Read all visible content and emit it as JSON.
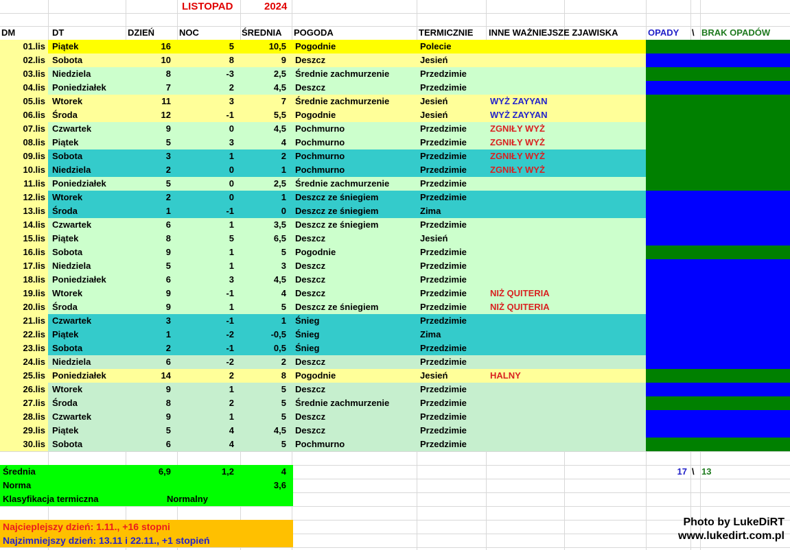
{
  "title": {
    "month": "LISTOPAD",
    "year": "2024"
  },
  "columns": {
    "dm": "DM",
    "dt": "DT",
    "day": "DZIEŃ",
    "night": "NOC",
    "avg": "ŚREDNIA",
    "weather": "POGODA",
    "thermal": "TERMICZNIE",
    "phenomena": "INNE WAŻNIEJSZE ZJAWISKA",
    "precip": "OPADY",
    "separator": "\\",
    "no_precip": "BRAK OPADÓW"
  },
  "fills": {
    "bright-yellow": "#ffff00",
    "pale-yellow": "#ffff99",
    "light-green": "#ccffcc",
    "green2": "#c6efce",
    "teal": "#34cbcb"
  },
  "bars": {
    "rain": "#0000ff",
    "dry": "#008000"
  },
  "colors": {
    "title_red": "#e00000",
    "phenomena_red": "#d92121",
    "phenomena_blue": "#2323cb",
    "precip_header_blue": "#2020c8",
    "no_precip_header_green": "#1e7a1e",
    "summary_green": "#00ff00",
    "extremes_orange": "#ffc000"
  },
  "rows": [
    {
      "dm": "01.lis",
      "dt": "Piątek",
      "day": "16",
      "night": "5",
      "avg": "10,5",
      "weather": "Pogodnie",
      "thermal": "Polecie",
      "phenomena": "",
      "phenomena_color": "",
      "fill": "bright-yellow",
      "bar": "dry"
    },
    {
      "dm": "02.lis",
      "dt": "Sobota",
      "day": "10",
      "night": "8",
      "avg": "9",
      "weather": "Deszcz",
      "thermal": "Jesień",
      "phenomena": "",
      "phenomena_color": "",
      "fill": "pale-yellow",
      "bar": "rain"
    },
    {
      "dm": "03.lis",
      "dt": "Niedziela",
      "day": "8",
      "night": "-3",
      "avg": "2,5",
      "weather": "Średnie zachmurzenie",
      "thermal": "Przedzimie",
      "phenomena": "",
      "phenomena_color": "",
      "fill": "light-green",
      "bar": "dry"
    },
    {
      "dm": "04.lis",
      "dt": "Poniedziałek",
      "day": "7",
      "night": "2",
      "avg": "4,5",
      "weather": "Deszcz",
      "thermal": "Przedzimie",
      "phenomena": "",
      "phenomena_color": "",
      "fill": "light-green",
      "bar": "rain"
    },
    {
      "dm": "05.lis",
      "dt": "Wtorek",
      "day": "11",
      "night": "3",
      "avg": "7",
      "weather": "Średnie zachmurzenie",
      "thermal": "Jesień",
      "phenomena": "WYŻ ZAYYAN",
      "phenomena_color": "blue",
      "fill": "pale-yellow",
      "bar": "dry"
    },
    {
      "dm": "06.lis",
      "dt": "Środa",
      "day": "12",
      "night": "-1",
      "avg": "5,5",
      "weather": "Pogodnie",
      "thermal": "Jesień",
      "phenomena": "WYŻ ZAYYAN",
      "phenomena_color": "blue",
      "fill": "pale-yellow",
      "bar": "dry"
    },
    {
      "dm": "07.lis",
      "dt": "Czwartek",
      "day": "9",
      "night": "0",
      "avg": "4,5",
      "weather": "Pochmurno",
      "thermal": "Przedzimie",
      "phenomena": "ZGNIŁY WYŻ",
      "phenomena_color": "red",
      "fill": "light-green",
      "bar": "dry"
    },
    {
      "dm": "08.lis",
      "dt": "Piątek",
      "day": "5",
      "night": "3",
      "avg": "4",
      "weather": "Pochmurno",
      "thermal": "Przedzimie",
      "phenomena": "ZGNIŁY WYŻ",
      "phenomena_color": "red",
      "fill": "light-green",
      "bar": "dry"
    },
    {
      "dm": "09.lis",
      "dt": "Sobota",
      "day": "3",
      "night": "1",
      "avg": "2",
      "weather": "Pochmurno",
      "thermal": "Przedzimie",
      "phenomena": "ZGNIŁY WYŻ",
      "phenomena_color": "red",
      "fill": "teal",
      "bar": "dry"
    },
    {
      "dm": "10.lis",
      "dt": "Niedziela",
      "day": "2",
      "night": "0",
      "avg": "1",
      "weather": "Pochmurno",
      "thermal": "Przedzimie",
      "phenomena": "ZGNIŁY WYŻ",
      "phenomena_color": "red",
      "fill": "teal",
      "bar": "dry"
    },
    {
      "dm": "11.lis",
      "dt": "Poniedziałek",
      "day": "5",
      "night": "0",
      "avg": "2,5",
      "weather": "Średnie zachmurzenie",
      "thermal": "Przedzimie",
      "phenomena": "",
      "phenomena_color": "",
      "fill": "light-green",
      "bar": "dry"
    },
    {
      "dm": "12.lis",
      "dt": "Wtorek",
      "day": "2",
      "night": "0",
      "avg": "1",
      "weather": "Deszcz ze śniegiem",
      "thermal": "Przedzimie",
      "phenomena": "",
      "phenomena_color": "",
      "fill": "teal",
      "bar": "rain"
    },
    {
      "dm": "13.lis",
      "dt": "Środa",
      "day": "1",
      "night": "-1",
      "avg": "0",
      "weather": "Deszcz ze śniegiem",
      "thermal": "Zima",
      "phenomena": "",
      "phenomena_color": "",
      "fill": "teal",
      "bar": "rain"
    },
    {
      "dm": "14.lis",
      "dt": "Czwartek",
      "day": "6",
      "night": "1",
      "avg": "3,5",
      "weather": "Deszcz ze śniegiem",
      "thermal": "Przedzimie",
      "phenomena": "",
      "phenomena_color": "",
      "fill": "light-green",
      "bar": "rain"
    },
    {
      "dm": "15.lis",
      "dt": "Piątek",
      "day": "8",
      "night": "5",
      "avg": "6,5",
      "weather": "Deszcz",
      "thermal": "Jesień",
      "phenomena": "",
      "phenomena_color": "",
      "fill": "light-green",
      "bar": "rain"
    },
    {
      "dm": "16.lis",
      "dt": "Sobota",
      "day": "9",
      "night": "1",
      "avg": "5",
      "weather": "Pogodnie",
      "thermal": "Przedzimie",
      "phenomena": "",
      "phenomena_color": "",
      "fill": "light-green",
      "bar": "dry"
    },
    {
      "dm": "17.lis",
      "dt": "Niedziela",
      "day": "5",
      "night": "1",
      "avg": "3",
      "weather": "Deszcz",
      "thermal": "Przedzimie",
      "phenomena": "",
      "phenomena_color": "",
      "fill": "light-green",
      "bar": "rain"
    },
    {
      "dm": "18.lis",
      "dt": "Poniedziałek",
      "day": "6",
      "night": "3",
      "avg": "4,5",
      "weather": "Deszcz",
      "thermal": "Przedzimie",
      "phenomena": "",
      "phenomena_color": "",
      "fill": "light-green",
      "bar": "rain"
    },
    {
      "dm": "19.lis",
      "dt": "Wtorek",
      "day": "9",
      "night": "-1",
      "avg": "4",
      "weather": "Deszcz",
      "thermal": "Przedzimie",
      "phenomena": "NIŻ QUITERIA",
      "phenomena_color": "red",
      "fill": "light-green",
      "bar": "rain"
    },
    {
      "dm": "20.lis",
      "dt": "Środa",
      "day": "9",
      "night": "1",
      "avg": "5",
      "weather": "Deszcz ze śniegiem",
      "thermal": "Przedzimie",
      "phenomena": "NIŻ QUITERIA",
      "phenomena_color": "red",
      "fill": "light-green",
      "bar": "rain"
    },
    {
      "dm": "21.lis",
      "dt": "Czwartek",
      "day": "3",
      "night": "-1",
      "avg": "1",
      "weather": "Śnieg",
      "thermal": "Przedzimie",
      "phenomena": "",
      "phenomena_color": "",
      "fill": "teal",
      "bar": "rain"
    },
    {
      "dm": "22.lis",
      "dt": "Piątek",
      "day": "1",
      "night": "-2",
      "avg": "-0,5",
      "weather": "Śnieg",
      "thermal": "Zima",
      "phenomena": "",
      "phenomena_color": "",
      "fill": "teal",
      "bar": "rain"
    },
    {
      "dm": "23.lis",
      "dt": "Sobota",
      "day": "2",
      "night": "-1",
      "avg": "0,5",
      "weather": "Śnieg",
      "thermal": "Przedzimie",
      "phenomena": "",
      "phenomena_color": "",
      "fill": "teal",
      "bar": "rain"
    },
    {
      "dm": "24.lis",
      "dt": "Niedziela",
      "day": "6",
      "night": "-2",
      "avg": "2",
      "weather": "Deszcz",
      "thermal": "Przedzimie",
      "phenomena": "",
      "phenomena_color": "",
      "fill": "green2",
      "bar": "rain"
    },
    {
      "dm": "25.lis",
      "dt": "Poniedziałek",
      "day": "14",
      "night": "2",
      "avg": "8",
      "weather": "Pogodnie",
      "thermal": "Jesień",
      "phenomena": "HALNY",
      "phenomena_color": "red",
      "fill": "pale-yellow",
      "bar": "dry"
    },
    {
      "dm": "26.lis",
      "dt": "Wtorek",
      "day": "9",
      "night": "1",
      "avg": "5",
      "weather": "Deszcz",
      "thermal": "Przedzimie",
      "phenomena": "",
      "phenomena_color": "",
      "fill": "green2",
      "bar": "rain"
    },
    {
      "dm": "27.lis",
      "dt": "Środa",
      "day": "8",
      "night": "2",
      "avg": "5",
      "weather": "Średnie zachmurzenie",
      "thermal": "Przedzimie",
      "phenomena": "",
      "phenomena_color": "",
      "fill": "green2",
      "bar": "dry"
    },
    {
      "dm": "28.lis",
      "dt": "Czwartek",
      "day": "9",
      "night": "1",
      "avg": "5",
      "weather": "Deszcz",
      "thermal": "Przedzimie",
      "phenomena": "",
      "phenomena_color": "",
      "fill": "green2",
      "bar": "rain"
    },
    {
      "dm": "29.lis",
      "dt": "Piątek",
      "day": "5",
      "night": "4",
      "avg": "4,5",
      "weather": "Deszcz",
      "thermal": "Przedzimie",
      "phenomena": "",
      "phenomena_color": "",
      "fill": "green2",
      "bar": "rain"
    },
    {
      "dm": "30.lis",
      "dt": "Sobota",
      "day": "6",
      "night": "4",
      "avg": "5",
      "weather": "Pochmurno",
      "thermal": "Przedzimie",
      "phenomena": "",
      "phenomena_color": "",
      "fill": "green2",
      "bar": "dry"
    }
  ],
  "summary": {
    "avg_label": "Średnia",
    "avg_day": "6,9",
    "avg_night": "1,2",
    "avg_total": "4",
    "norm_label": "Norma",
    "norm_value": "3,6",
    "class_label": "Klasyfikacja termiczna",
    "class_value": "Normalny"
  },
  "counts": {
    "precip_days": "17",
    "separator": "\\",
    "no_precip_days": "13"
  },
  "extremes": {
    "warmest": "Najcieplejszy dzień: 1.11., +16 stopni",
    "coldest": "Najzimniejszy dzień: 13.11 i 22.11., +1 stopień"
  },
  "credit": {
    "line1": "Photo by LukeDiRT",
    "line2": "www.lukedirt.com.pl"
  }
}
